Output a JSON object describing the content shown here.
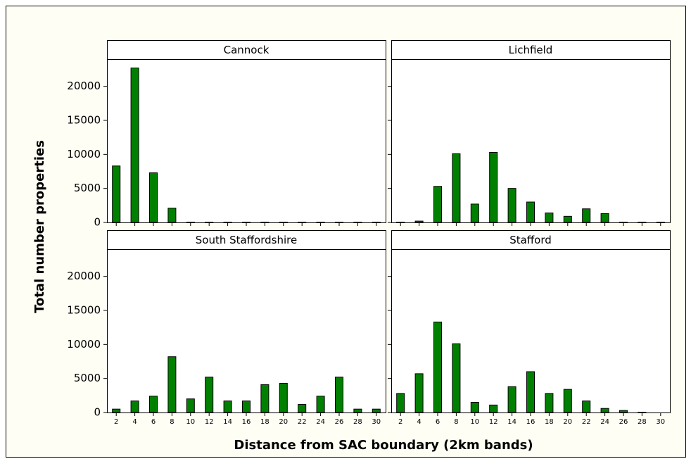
{
  "chart_data": {
    "type": "bar",
    "xlabel": "Distance from SAC boundary (2km bands)",
    "ylabel": "Total number properties",
    "categories": [
      "2",
      "4",
      "6",
      "8",
      "10",
      "12",
      "14",
      "16",
      "18",
      "20",
      "22",
      "24",
      "26",
      "28",
      "30"
    ],
    "ylim": [
      0,
      24000
    ],
    "yticks": [
      0,
      5000,
      10000,
      15000,
      20000
    ],
    "color": "#008000",
    "panels": [
      {
        "title": "Cannock",
        "values": [
          8300,
          22700,
          7300,
          2100,
          50,
          50,
          50,
          50,
          50,
          50,
          50,
          50,
          50,
          50,
          50
        ]
      },
      {
        "title": "Lichfield",
        "values": [
          50,
          200,
          5300,
          10100,
          2700,
          10300,
          5000,
          3000,
          1400,
          900,
          2000,
          1300,
          50,
          50,
          50
        ]
      },
      {
        "title": "South Staffordshire",
        "values": [
          500,
          1700,
          2400,
          8200,
          2000,
          5200,
          1700,
          1700,
          4100,
          4300,
          1200,
          2400,
          5200,
          500,
          500
        ]
      },
      {
        "title": "Stafford",
        "values": [
          2800,
          5700,
          13300,
          10100,
          1500,
          1100,
          3800,
          6000,
          2800,
          3400,
          1700,
          600,
          300,
          50,
          0
        ]
      }
    ]
  }
}
